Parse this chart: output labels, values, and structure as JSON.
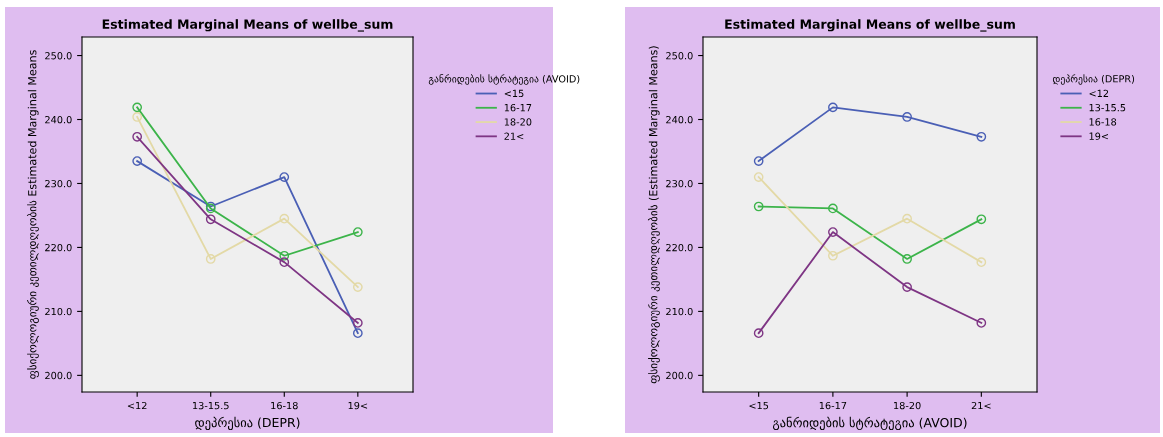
{
  "chart_data": [
    {
      "type": "line",
      "title": "Estimated Marginal Means of wellbe_sum",
      "xlabel": "დეპრესია (DEPR)",
      "ylabel": "ფსიქოლოგიური კეთილდღეობის Estimated Marginal Means",
      "legend_title": "განრიდების სტრატეგია (AVOID)",
      "categories": [
        "<12",
        "13-15.5",
        "16-18",
        "19<"
      ],
      "series": [
        {
          "name": "<15",
          "color": "#4a5fb5",
          "values": [
            233.5,
            226.4,
            231.0,
            206.6
          ]
        },
        {
          "name": "16-17",
          "color": "#3cb44a",
          "values": [
            241.9,
            226.1,
            218.7,
            222.4
          ]
        },
        {
          "name": "18-20",
          "color": "#e3d9a6",
          "values": [
            240.4,
            218.2,
            224.5,
            213.8
          ]
        },
        {
          "name": "21<",
          "color": "#7e3584",
          "values": [
            237.3,
            224.4,
            217.7,
            208.2
          ]
        }
      ],
      "ylim": [
        197.4,
        252.9
      ],
      "yticks": [
        {
          "value": 200,
          "label": "200.0"
        },
        {
          "value": 210,
          "label": "210.0"
        },
        {
          "value": 220,
          "label": "220.0"
        },
        {
          "value": 230,
          "label": "230.0"
        },
        {
          "value": 240,
          "label": "240.0"
        },
        {
          "value": 250,
          "label": "250.0"
        }
      ],
      "legend": "right",
      "marker": "circle",
      "line_style": "solid",
      "grid": false
    },
    {
      "type": "line",
      "title": "Estimated Marginal Means of wellbe_sum",
      "xlabel": "განრიდების სტრატეგია (AVOID)",
      "ylabel": "ფსიქოლოგიური კეთილდღეობის (Estimated Marginal Means)",
      "legend_title": "დეპრესია (DEPR)",
      "categories": [
        "<15",
        "16-17",
        "18-20",
        "21<"
      ],
      "series": [
        {
          "name": "<12",
          "color": "#4a5fb5",
          "values": [
            233.5,
            241.9,
            240.4,
            237.3
          ]
        },
        {
          "name": "13-15.5",
          "color": "#3cb44a",
          "values": [
            226.4,
            226.1,
            218.2,
            224.4
          ]
        },
        {
          "name": "16-18",
          "color": "#e3d9a6",
          "values": [
            231.0,
            218.7,
            224.5,
            217.7
          ]
        },
        {
          "name": "19<",
          "color": "#7e3584",
          "values": [
            206.6,
            222.4,
            213.8,
            208.2
          ]
        }
      ],
      "ylim": [
        197.4,
        252.9
      ],
      "yticks": [
        {
          "value": 200,
          "label": "200.0"
        },
        {
          "value": 210,
          "label": "210.0"
        },
        {
          "value": 220,
          "label": "220.0"
        },
        {
          "value": 230,
          "label": "230.0"
        },
        {
          "value": 240,
          "label": "240.0"
        },
        {
          "value": 250,
          "label": "250.0"
        }
      ],
      "legend": "right",
      "marker": "circle",
      "line_style": "solid",
      "grid": false
    }
  ]
}
